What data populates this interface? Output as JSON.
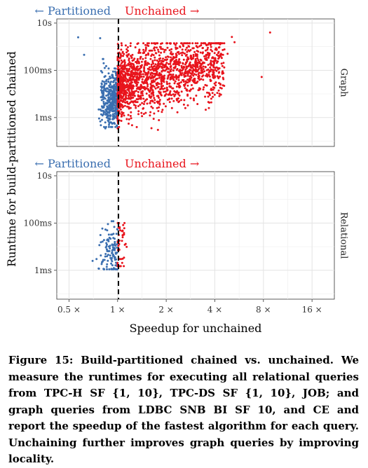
{
  "chart_data": {
    "type": "scatter",
    "xlabel": "Speedup for unchained",
    "ylabel": "Runtime for build-partitioned chained",
    "x_scale": "log2",
    "y_scale": "log10",
    "xlim": [
      0.42,
      22
    ],
    "ylim_seconds": [
      6e-05,
      15
    ],
    "x_ticks": [
      0.5,
      1,
      2,
      4,
      8,
      16
    ],
    "x_tick_labels": [
      "0.5 ×",
      "1 ×",
      "2 ×",
      "4 ×",
      "8 ×",
      "16 ×"
    ],
    "y_ticks_seconds": [
      0.001,
      0.1,
      10
    ],
    "y_tick_labels": [
      "1ms",
      "100ms",
      "10s"
    ],
    "reference_line_x": 1,
    "annotation_left": "← Partitioned",
    "annotation_right": "Unchained →",
    "colors": {
      "partitioned": "#3b6fb0",
      "unchained": "#e8141c"
    },
    "panels": [
      {
        "name": "Graph",
        "series": [
          {
            "name": "Partitioned",
            "points": [
              [
                0.57,
                2.5
              ],
              [
                0.78,
                2.3
              ],
              [
                0.62,
                0.45
              ],
              [
                0.82,
                0.2
              ],
              [
                0.85,
                0.15
              ],
              [
                0.88,
                0.12
              ],
              [
                0.9,
                0.01
              ],
              [
                0.92,
                0.006
              ],
              [
                0.86,
                0.003
              ],
              [
                0.94,
                0.002
              ],
              [
                0.8,
                0.0008
              ],
              [
                0.95,
                0.0006
              ],
              [
                0.97,
                0.0004
              ],
              [
                0.84,
                0.00035
              ]
            ],
            "generated": {
              "count": 380,
              "x_range": [
                0.76,
                1.0
              ],
              "y_range_seconds": [
                0.0004,
                0.3
              ],
              "y_center_seconds": 0.006,
              "seed": 11
            }
          },
          {
            "name": "Unchained",
            "points": [
              [
                8.8,
                4.0
              ],
              [
                5.1,
                2.6
              ],
              [
                5.3,
                1.55
              ],
              [
                4.3,
                1.3
              ],
              [
                4.5,
                0.45
              ],
              [
                4.8,
                0.5
              ],
              [
                3.6,
                0.75
              ],
              [
                7.8,
                0.052
              ],
              [
                1.0,
                0.00035
              ],
              [
                1.02,
                0.0004
              ],
              [
                1.5,
                0.8
              ],
              [
                2.3,
                0.8
              ],
              [
                3.1,
                1.0
              ]
            ],
            "generated": {
              "count": 1650,
              "x_range": [
                1.0,
                4.6
              ],
              "y_range_seconds": [
                0.0003,
                1.4
              ],
              "y_center_seconds": 0.025,
              "seed": 29
            }
          }
        ]
      },
      {
        "name": "Relational",
        "series": [
          {
            "name": "Partitioned",
            "points": [
              [
                0.7,
                0.0025
              ],
              [
                0.74,
                0.003
              ],
              [
                0.8,
                0.0022
              ],
              [
                0.86,
                0.0018
              ]
            ],
            "generated": {
              "count": 110,
              "x_range": [
                0.74,
                1.0
              ],
              "y_range_seconds": [
                0.0011,
                0.12
              ],
              "y_center_seconds": 0.006,
              "seed": 41
            }
          },
          {
            "name": "Unchained",
            "points": [
              [
                1.02,
                0.1
              ],
              [
                1.03,
                0.06
              ],
              [
                1.05,
                0.003
              ]
            ],
            "generated": {
              "count": 45,
              "x_range": [
                1.0,
                1.14
              ],
              "y_range_seconds": [
                0.0015,
                0.1
              ],
              "y_center_seconds": 0.006,
              "seed": 53
            }
          }
        ]
      }
    ]
  },
  "caption": "Figure 15: Build-partitioned chained vs. unchained. We measure the runtimes for executing all relational queries from TPC-H SF {1, 10}, TPC-DS SF {1, 10}, JOB; and graph queries from LDBC SNB BI SF 10, and CE and report the speedup of the fastest algorithm for each query. Unchaining further improves graph queries by improving locality."
}
